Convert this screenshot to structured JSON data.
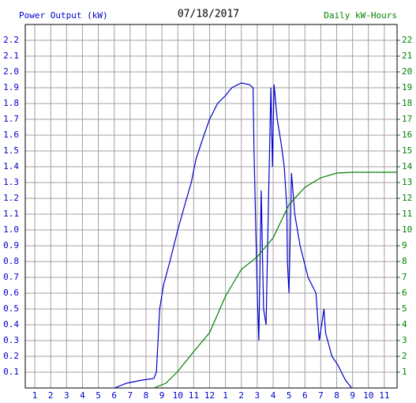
{
  "chart_data": {
    "type": "line",
    "title": "07/18/2017",
    "y_label": "Power Output (kW)",
    "y2_label": "Daily kW-Hours",
    "xlim": [
      0.4,
      23.8
    ],
    "xticks": [
      1,
      2,
      3,
      4,
      5,
      6,
      7,
      8,
      9,
      10,
      11,
      12,
      {
        "value": 13,
        "label": "1"
      },
      {
        "value": 14,
        "label": "2"
      },
      {
        "value": 15,
        "label": "3"
      },
      {
        "value": 16,
        "label": "4"
      },
      {
        "value": 17,
        "label": "5"
      },
      {
        "value": 18,
        "label": "6"
      },
      {
        "value": 19,
        "label": "7"
      },
      {
        "value": 20,
        "label": "8"
      },
      {
        "value": 21,
        "label": "9"
      },
      {
        "value": 22,
        "label": "10"
      },
      {
        "value": 23,
        "label": "11"
      }
    ],
    "ylim": [
      0,
      2.3
    ],
    "yticks": [
      0.1,
      0.2,
      0.3,
      0.4,
      0.5,
      0.6,
      0.7,
      0.8,
      0.9,
      {
        "value": 1,
        "label": "1.0"
      },
      1.1,
      1.2,
      1.3,
      1.4,
      1.5,
      1.6,
      1.7,
      1.8,
      1.9,
      {
        "value": 2,
        "label": "2.0"
      },
      2.1,
      2.2
    ],
    "y2lim": [
      0,
      23
    ],
    "y2ticks": [
      1,
      2,
      3,
      4,
      5,
      6,
      7,
      8,
      9,
      10,
      11,
      12,
      13,
      14,
      15,
      16,
      17,
      18,
      19,
      20,
      21,
      22
    ],
    "grid": true,
    "series": [
      {
        "name": "Power Output (kW)",
        "color": "#0000cc",
        "x": [
          6.02,
          6.77,
          7.76,
          8.5,
          8.65,
          8.86,
          9.1,
          9.5,
          10.0,
          10.5,
          10.85,
          11.15,
          11.65,
          12.0,
          12.5,
          13.0,
          13.4,
          14.0,
          14.5,
          14.74,
          14.8,
          15.0,
          15.1,
          15.25,
          15.4,
          15.56,
          15.7,
          15.86,
          15.96,
          16.06,
          16.26,
          16.5,
          16.7,
          16.86,
          16.9,
          17.0,
          17.16,
          17.36,
          17.7,
          18.2,
          18.7,
          18.9,
          19.2,
          19.3,
          19.7,
          20.05,
          20.55,
          20.95
        ],
        "values": [
          0,
          0.03,
          0.05,
          0.06,
          0.1,
          0.5,
          0.65,
          0.8,
          1.0,
          1.18,
          1.3,
          1.45,
          1.6,
          1.7,
          1.8,
          1.85,
          1.9,
          1.93,
          1.92,
          1.9,
          1.5,
          0.6,
          0.3,
          1.25,
          0.5,
          0.4,
          1.15,
          1.9,
          1.4,
          1.92,
          1.7,
          1.55,
          1.4,
          1.15,
          0.8,
          0.6,
          1.36,
          1.1,
          0.9,
          0.7,
          0.6,
          0.3,
          0.5,
          0.35,
          0.2,
          0.15,
          0.05,
          0
        ]
      },
      {
        "name": "Daily kW-Hours",
        "color": "#008000",
        "axis": "y2",
        "x": [
          8.5,
          9.25,
          10.0,
          11.0,
          12.0,
          13.0,
          14.0,
          15.0,
          16.0,
          17.0,
          18.0,
          19.0,
          20.0,
          21.0,
          23.8
        ],
        "values": [
          0,
          0.3,
          1.05,
          2.3,
          3.5,
          5.8,
          7.5,
          8.3,
          9.5,
          11.6,
          12.7,
          13.3,
          13.6,
          13.65,
          13.65
        ]
      }
    ]
  }
}
